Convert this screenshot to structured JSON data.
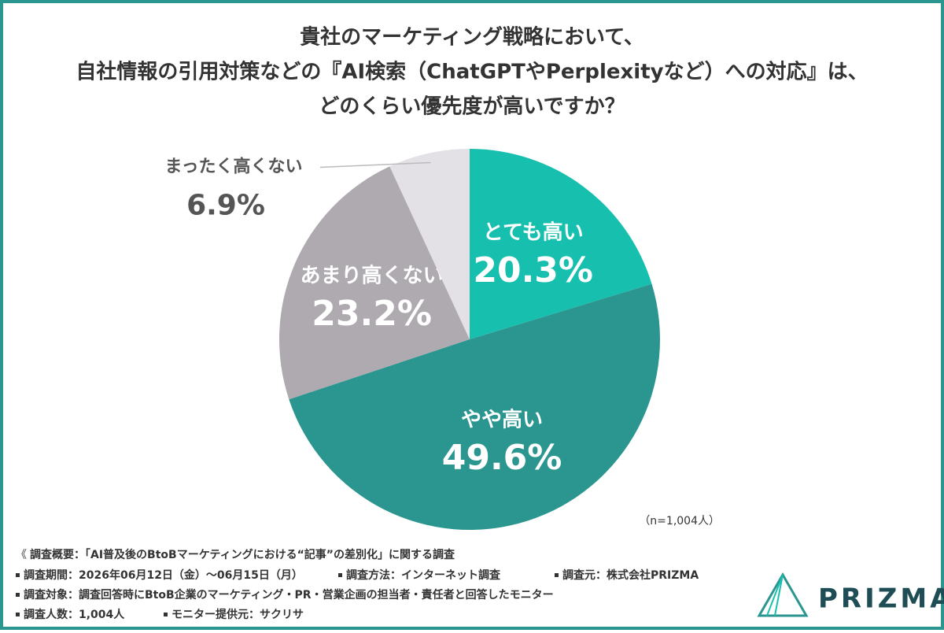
{
  "chart_data": {
    "type": "pie",
    "title": [
      "貴社のマーケティング戦略において、",
      "自社情報の引用対策などの『AI検索（ChatGPTやPerplexityなど）への対応』は、",
      "どのくらい優先度が高いですか？"
    ],
    "categories": [
      "とても高い",
      "やや高い",
      "あまり高くない",
      "まったく高くない"
    ],
    "values": [
      20.3,
      49.6,
      23.2,
      6.9
    ],
    "value_labels": [
      "20.3%",
      "49.6%",
      "23.2%",
      "6.9%"
    ],
    "colors": [
      "#17bfae",
      "#2b9690",
      "#aeaab0",
      "#e4e1e6"
    ],
    "note": "（n=1,004人）"
  },
  "footer": {
    "heading": "調査概要：「AI普及後のBtoBマーケティングにおける“記事”の差別化」に関する調査",
    "items": [
      [
        "調査期間：2026年06月12日（金）～06月15日（月）",
        "調査方法：インターネット調査",
        "調査元：株式会社PRIZMA"
      ],
      [
        "調査対象：調査回答時にBtoB企業のマーケティング・PR・営業企画の担当者・責任者と回答したモニター"
      ],
      [
        "調査人数：1,004人",
        "モニター提供元：サクリサ"
      ]
    ]
  },
  "logo": {
    "text": "PRIZMA"
  }
}
